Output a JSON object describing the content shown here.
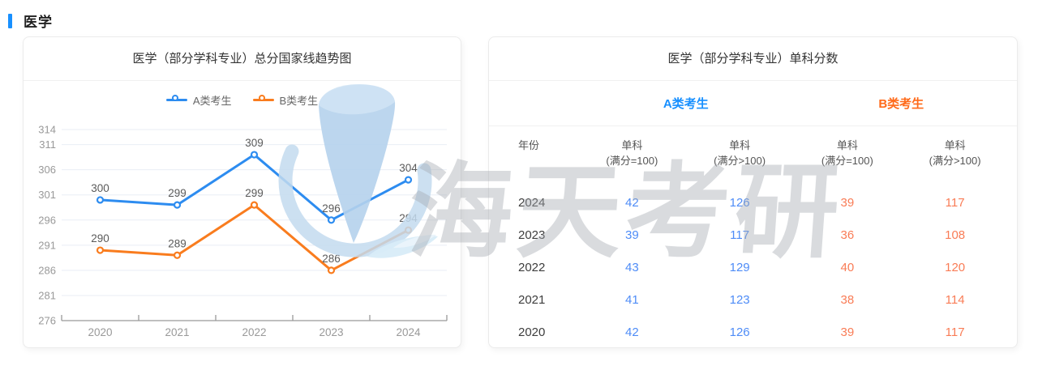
{
  "page": {
    "title": "医学",
    "accent_color": "#1890ff"
  },
  "watermark": {
    "text": "海天考研"
  },
  "chart_panel": {
    "title": "医学（部分学科专业）总分国家线趋势图"
  },
  "chart_data": {
    "type": "line",
    "title": "医学（部分学科专业）总分国家线趋势图",
    "categories": [
      "2020",
      "2021",
      "2022",
      "2023",
      "2024"
    ],
    "series": [
      {
        "name": "A类考生",
        "color": "#2d8cf0",
        "values": [
          300,
          299,
          309,
          296,
          304
        ]
      },
      {
        "name": "B类考生",
        "color": "#f97c1e",
        "values": [
          290,
          289,
          299,
          286,
          294
        ]
      }
    ],
    "y_ticks": [
      314,
      311,
      306,
      301,
      296,
      291,
      286,
      281,
      276
    ],
    "ylim": [
      276,
      314
    ],
    "grid": true,
    "legend_position": "top",
    "label_color": "#5a5a5a",
    "axis_color": "#999999",
    "grid_color": "#e9eef5"
  },
  "table_panel": {
    "title": "医学（部分学科专业）单科分数",
    "groups": [
      {
        "label": "A类考生",
        "color": "#1890ff"
      },
      {
        "label": "B类考生",
        "color": "#ff6a1a"
      }
    ],
    "columns": [
      {
        "line1": "年份",
        "line2": ""
      },
      {
        "line1": "单科",
        "line2": "(满分=100)"
      },
      {
        "line1": "单科",
        "line2": "(满分>100)"
      },
      {
        "line1": "单科",
        "line2": "(满分=100)"
      },
      {
        "line1": "单科",
        "line2": "(满分>100)"
      }
    ],
    "a_value_color": "#4e8cf7",
    "b_value_color": "#f97c56",
    "rows": [
      {
        "year": "2024",
        "a1": "42",
        "a2": "126",
        "b1": "39",
        "b2": "117"
      },
      {
        "year": "2023",
        "a1": "39",
        "a2": "117",
        "b1": "36",
        "b2": "108"
      },
      {
        "year": "2022",
        "a1": "43",
        "a2": "129",
        "b1": "40",
        "b2": "120"
      },
      {
        "year": "2021",
        "a1": "41",
        "a2": "123",
        "b1": "38",
        "b2": "114"
      },
      {
        "year": "2020",
        "a1": "42",
        "a2": "126",
        "b1": "39",
        "b2": "117"
      }
    ]
  }
}
